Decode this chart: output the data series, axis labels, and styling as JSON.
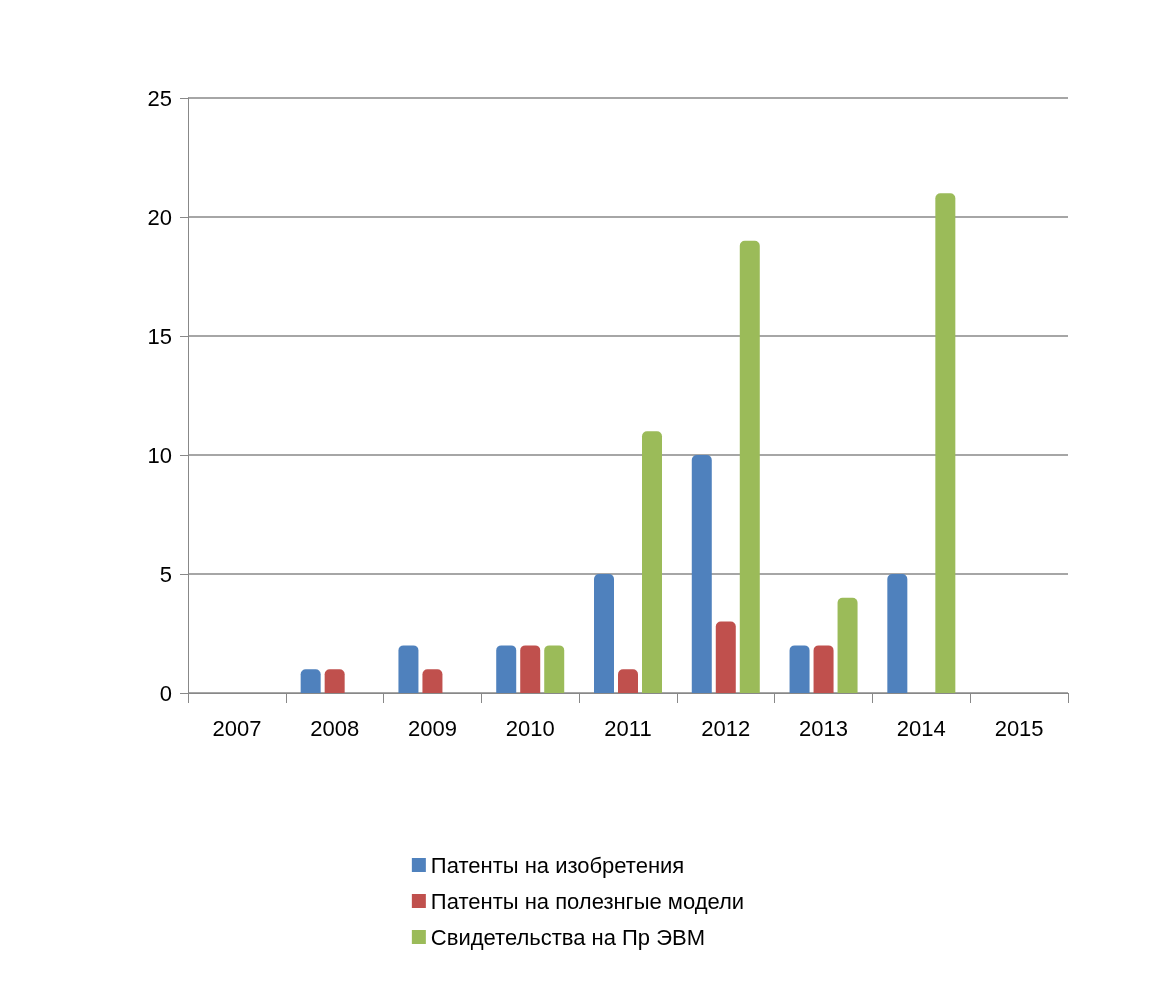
{
  "chart_data": {
    "type": "bar",
    "categories": [
      "2007",
      "2008",
      "2009",
      "2010",
      "2011",
      "2012",
      "2013",
      "2014",
      "2015"
    ],
    "series": [
      {
        "name": "Патенты на изобретения",
        "color": "#4f81bd",
        "values": [
          0,
          1,
          2,
          2,
          5,
          10,
          2,
          5,
          null
        ]
      },
      {
        "name": "Патенты на полезнгые модели",
        "color": "#c0504d",
        "values": [
          0,
          1,
          1,
          2,
          1,
          3,
          2,
          0,
          null
        ]
      },
      {
        "name": "Свидетельства на Пр ЭВМ",
        "color": "#9bbb59",
        "values": [
          0,
          0,
          0,
          2,
          11,
          19,
          4,
          21,
          null
        ]
      }
    ],
    "ylim": [
      0,
      25
    ],
    "yticks": [
      0,
      5,
      10,
      15,
      20,
      25
    ],
    "grid": "y",
    "legend": "bottom"
  }
}
